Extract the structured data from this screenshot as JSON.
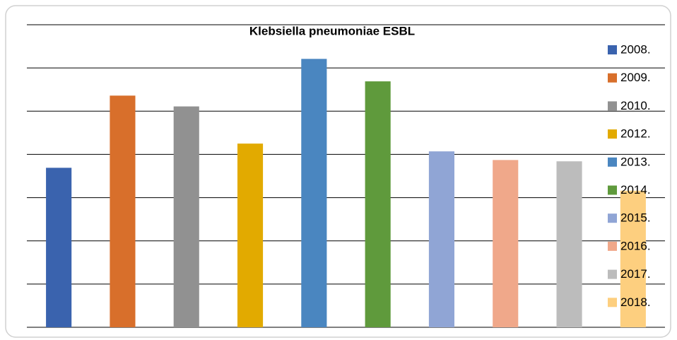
{
  "chart_data": {
    "type": "bar",
    "title": "Klebsiella pneumoniae ESBL",
    "categories": [
      "2008.",
      "2009.",
      "2010.",
      "2012.",
      "2013.",
      "2014.",
      "2015.",
      "2016.",
      "2017.",
      "2018."
    ],
    "values": [
      3.69,
      5.36,
      5.11,
      4.25,
      6.21,
      5.69,
      4.07,
      3.87,
      3.84,
      3.16
    ],
    "colors": [
      "#3a63ae",
      "#d86f2b",
      "#919191",
      "#e2aa00",
      "#4a86c0",
      "#5f9a3c",
      "#90a5d5",
      "#f0a88a",
      "#bcbcbc",
      "#fdcf7f"
    ],
    "ylim": [
      0,
      7
    ],
    "yticks": [
      0,
      1,
      2,
      3,
      4,
      5,
      6,
      7
    ],
    "grid": true,
    "legend": "right"
  }
}
